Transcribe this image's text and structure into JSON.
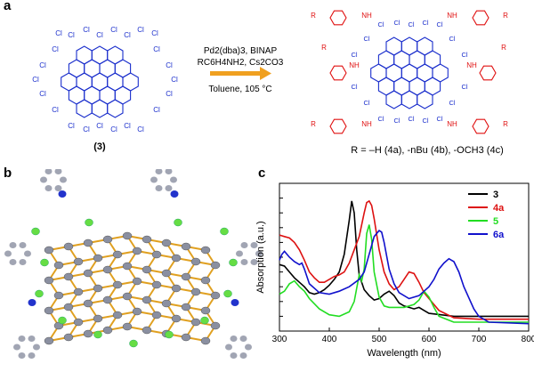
{
  "panels": {
    "a": {
      "label": "a",
      "reactant": {
        "substituent": "Cl",
        "compound_label": "(3)"
      },
      "conditions": {
        "line1": "Pd2(dba)3, BINAP",
        "line2": "RC6H4NH2, Cs2CO3",
        "line3": "Toluene, 105 °C"
      },
      "product": {
        "chloro": "Cl",
        "amine": "NH",
        "aryl_r": "R",
        "r_definition": "R = –H (4a), -nBu (4b), -OCH3 (4c)"
      },
      "colors": {
        "reactant": "#1a2ecc",
        "product_core": "#1a2ecc",
        "product_arm": "#e01010",
        "arrow": "#f0a020"
      }
    },
    "b": {
      "label": "b",
      "colors": {
        "bond": "#e0a020",
        "carbon": "#8a8fa0",
        "chlorine": "#66dd44",
        "nitrogen": "#2233cc",
        "hydrogen": "#d0d0d0"
      }
    },
    "c": {
      "label": "c"
    }
  },
  "chart_data": {
    "type": "line",
    "title": "",
    "xlabel": "Wavelength (nm)",
    "ylabel": "Absorption (a.u.)",
    "xlim": [
      300,
      800
    ],
    "xticks": [
      300,
      400,
      500,
      600,
      700,
      800
    ],
    "ylim": [
      0,
      1
    ],
    "yticks_unlabeled": true,
    "legend_position": "top-right",
    "series": [
      {
        "name": "3",
        "color": "#000000",
        "x": [
          300,
          310,
          320,
          330,
          340,
          350,
          360,
          370,
          380,
          390,
          400,
          410,
          420,
          430,
          440,
          445,
          450,
          455,
          460,
          470,
          480,
          490,
          500,
          510,
          520,
          530,
          540,
          550,
          560,
          570,
          580,
          590,
          600,
          650,
          700,
          800
        ],
        "y": [
          0.45,
          0.44,
          0.4,
          0.36,
          0.33,
          0.3,
          0.26,
          0.25,
          0.26,
          0.28,
          0.31,
          0.35,
          0.4,
          0.52,
          0.75,
          0.88,
          0.8,
          0.55,
          0.38,
          0.28,
          0.24,
          0.21,
          0.22,
          0.25,
          0.27,
          0.24,
          0.19,
          0.17,
          0.16,
          0.15,
          0.16,
          0.14,
          0.12,
          0.1,
          0.1,
          0.1
        ]
      },
      {
        "name": "4a",
        "color": "#dd1111",
        "x": [
          300,
          310,
          320,
          330,
          340,
          350,
          360,
          370,
          380,
          390,
          400,
          410,
          420,
          430,
          440,
          450,
          460,
          470,
          475,
          480,
          485,
          490,
          500,
          510,
          520,
          530,
          540,
          550,
          560,
          570,
          580,
          590,
          600,
          620,
          650,
          700,
          800
        ],
        "y": [
          0.65,
          0.64,
          0.63,
          0.6,
          0.55,
          0.48,
          0.4,
          0.36,
          0.33,
          0.33,
          0.35,
          0.37,
          0.38,
          0.4,
          0.46,
          0.55,
          0.64,
          0.8,
          0.87,
          0.88,
          0.85,
          0.76,
          0.55,
          0.4,
          0.32,
          0.28,
          0.3,
          0.35,
          0.4,
          0.39,
          0.33,
          0.26,
          0.22,
          0.14,
          0.09,
          0.08,
          0.08
        ]
      },
      {
        "name": "5",
        "color": "#22dd22",
        "x": [
          300,
          310,
          320,
          330,
          340,
          350,
          360,
          380,
          400,
          420,
          440,
          450,
          460,
          465,
          470,
          475,
          480,
          485,
          490,
          500,
          510,
          520,
          530,
          550,
          570,
          580,
          590,
          600,
          610,
          620,
          650,
          700,
          800
        ],
        "y": [
          0.25,
          0.27,
          0.32,
          0.34,
          0.3,
          0.27,
          0.22,
          0.15,
          0.11,
          0.1,
          0.13,
          0.2,
          0.38,
          0.34,
          0.42,
          0.66,
          0.72,
          0.62,
          0.4,
          0.23,
          0.17,
          0.16,
          0.16,
          0.16,
          0.18,
          0.21,
          0.27,
          0.23,
          0.16,
          0.1,
          0.06,
          0.06,
          0.06
        ]
      },
      {
        "name": "6a",
        "color": "#1111cc",
        "x": [
          300,
          305,
          310,
          320,
          330,
          340,
          345,
          350,
          360,
          380,
          400,
          420,
          440,
          460,
          470,
          480,
          490,
          500,
          505,
          510,
          520,
          530,
          540,
          560,
          580,
          600,
          610,
          620,
          630,
          640,
          650,
          660,
          670,
          690,
          700,
          720,
          800
        ],
        "y": [
          0.48,
          0.52,
          0.54,
          0.5,
          0.47,
          0.45,
          0.46,
          0.42,
          0.32,
          0.26,
          0.25,
          0.27,
          0.3,
          0.35,
          0.4,
          0.52,
          0.64,
          0.68,
          0.67,
          0.6,
          0.42,
          0.32,
          0.26,
          0.22,
          0.24,
          0.3,
          0.35,
          0.42,
          0.46,
          0.49,
          0.47,
          0.4,
          0.3,
          0.15,
          0.1,
          0.06,
          0.05
        ]
      }
    ]
  }
}
